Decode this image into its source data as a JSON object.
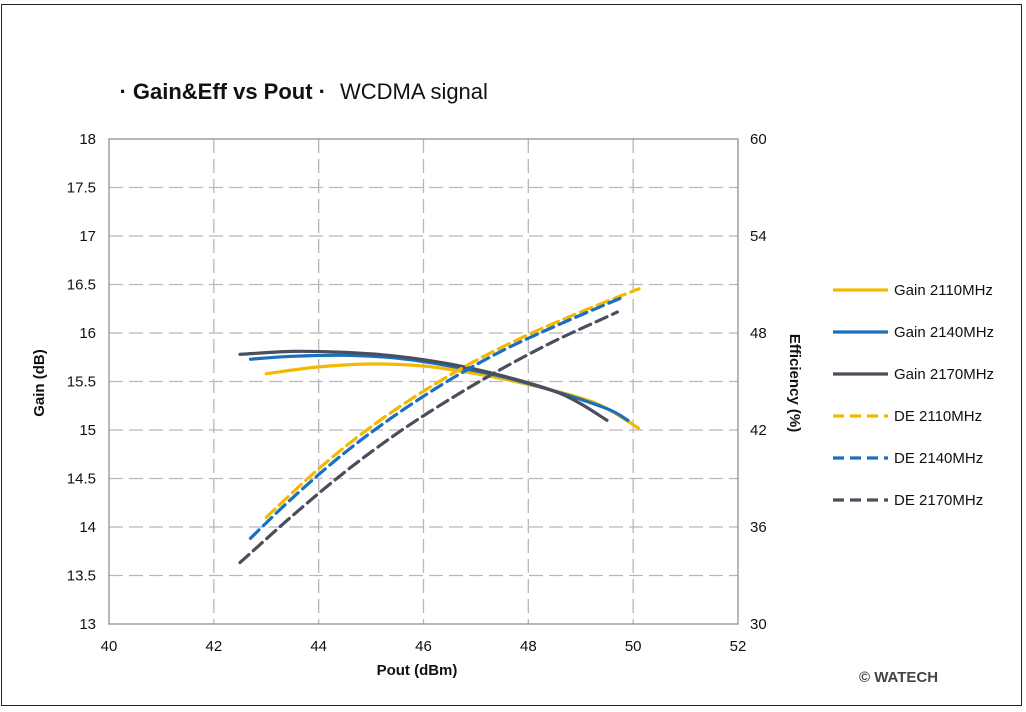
{
  "chart_data": {
    "type": "line",
    "title": "· Gain&Eff vs Pout ·",
    "subtitle": "WCDMA signal",
    "xlabel": "Pout (dBm)",
    "ylabel": "Gain (dB)",
    "y2label": "Efficiency (%)",
    "xlim": [
      40,
      52
    ],
    "ylim": [
      13,
      18
    ],
    "y2lim": [
      30,
      60
    ],
    "x_ticks": [
      40,
      42,
      44,
      46,
      48,
      50,
      52
    ],
    "y_ticks": [
      13,
      13.5,
      14,
      14.5,
      15,
      15.5,
      16,
      16.5,
      17,
      17.5,
      18
    ],
    "y2_ticks": [
      30,
      36,
      42,
      48,
      54,
      60
    ],
    "grid": true,
    "legend_position": "right",
    "series": [
      {
        "name": "Gain 2110MHz",
        "axis": "left",
        "style": "solid",
        "color": "#F5B800",
        "points": [
          [
            43.0,
            15.58
          ],
          [
            44.0,
            15.65
          ],
          [
            45.0,
            15.68
          ],
          [
            46.0,
            15.66
          ],
          [
            47.0,
            15.58
          ],
          [
            48.0,
            15.47
          ],
          [
            49.0,
            15.33
          ],
          [
            49.5,
            15.22
          ],
          [
            50.1,
            15.02
          ]
        ]
      },
      {
        "name": "Gain 2140MHz",
        "axis": "left",
        "style": "solid",
        "color": "#1A6FBF",
        "points": [
          [
            42.7,
            15.73
          ],
          [
            43.5,
            15.76
          ],
          [
            44.5,
            15.77
          ],
          [
            45.5,
            15.74
          ],
          [
            46.5,
            15.66
          ],
          [
            47.5,
            15.55
          ],
          [
            48.5,
            15.4
          ],
          [
            49.5,
            15.22
          ],
          [
            49.9,
            15.1
          ]
        ]
      },
      {
        "name": "Gain 2170MHz",
        "axis": "left",
        "style": "solid",
        "color": "#4A4F5C",
        "points": [
          [
            42.5,
            15.78
          ],
          [
            43.5,
            15.81
          ],
          [
            44.5,
            15.8
          ],
          [
            45.5,
            15.76
          ],
          [
            46.5,
            15.68
          ],
          [
            47.5,
            15.56
          ],
          [
            48.5,
            15.4
          ],
          [
            49.0,
            15.27
          ],
          [
            49.5,
            15.1
          ]
        ]
      },
      {
        "name": "DE 2110MHz",
        "axis": "right",
        "style": "dashed",
        "color": "#F5B800",
        "points": [
          [
            43.0,
            36.6
          ],
          [
            44.0,
            39.6
          ],
          [
            45.0,
            42.2
          ],
          [
            46.0,
            44.4
          ],
          [
            47.0,
            46.3
          ],
          [
            48.0,
            47.9
          ],
          [
            49.0,
            49.3
          ],
          [
            50.0,
            50.6
          ],
          [
            50.1,
            50.7
          ]
        ]
      },
      {
        "name": "DE 2140MHz",
        "axis": "right",
        "style": "dashed",
        "color": "#1A6FBF",
        "points": [
          [
            42.7,
            35.3
          ],
          [
            43.5,
            37.8
          ],
          [
            44.5,
            40.6
          ],
          [
            45.5,
            43.0
          ],
          [
            46.5,
            45.1
          ],
          [
            47.5,
            46.9
          ],
          [
            48.5,
            48.4
          ],
          [
            49.5,
            49.8
          ],
          [
            49.8,
            50.2
          ]
        ]
      },
      {
        "name": "DE 2170MHz",
        "axis": "right",
        "style": "dashed",
        "color": "#4A4F5C",
        "points": [
          [
            42.5,
            33.8
          ],
          [
            43.5,
            36.7
          ],
          [
            44.5,
            39.4
          ],
          [
            45.5,
            41.8
          ],
          [
            46.5,
            43.9
          ],
          [
            47.5,
            45.8
          ],
          [
            48.5,
            47.5
          ],
          [
            49.5,
            49.0
          ],
          [
            49.7,
            49.3
          ]
        ]
      }
    ],
    "annotation": "© WATECH"
  }
}
